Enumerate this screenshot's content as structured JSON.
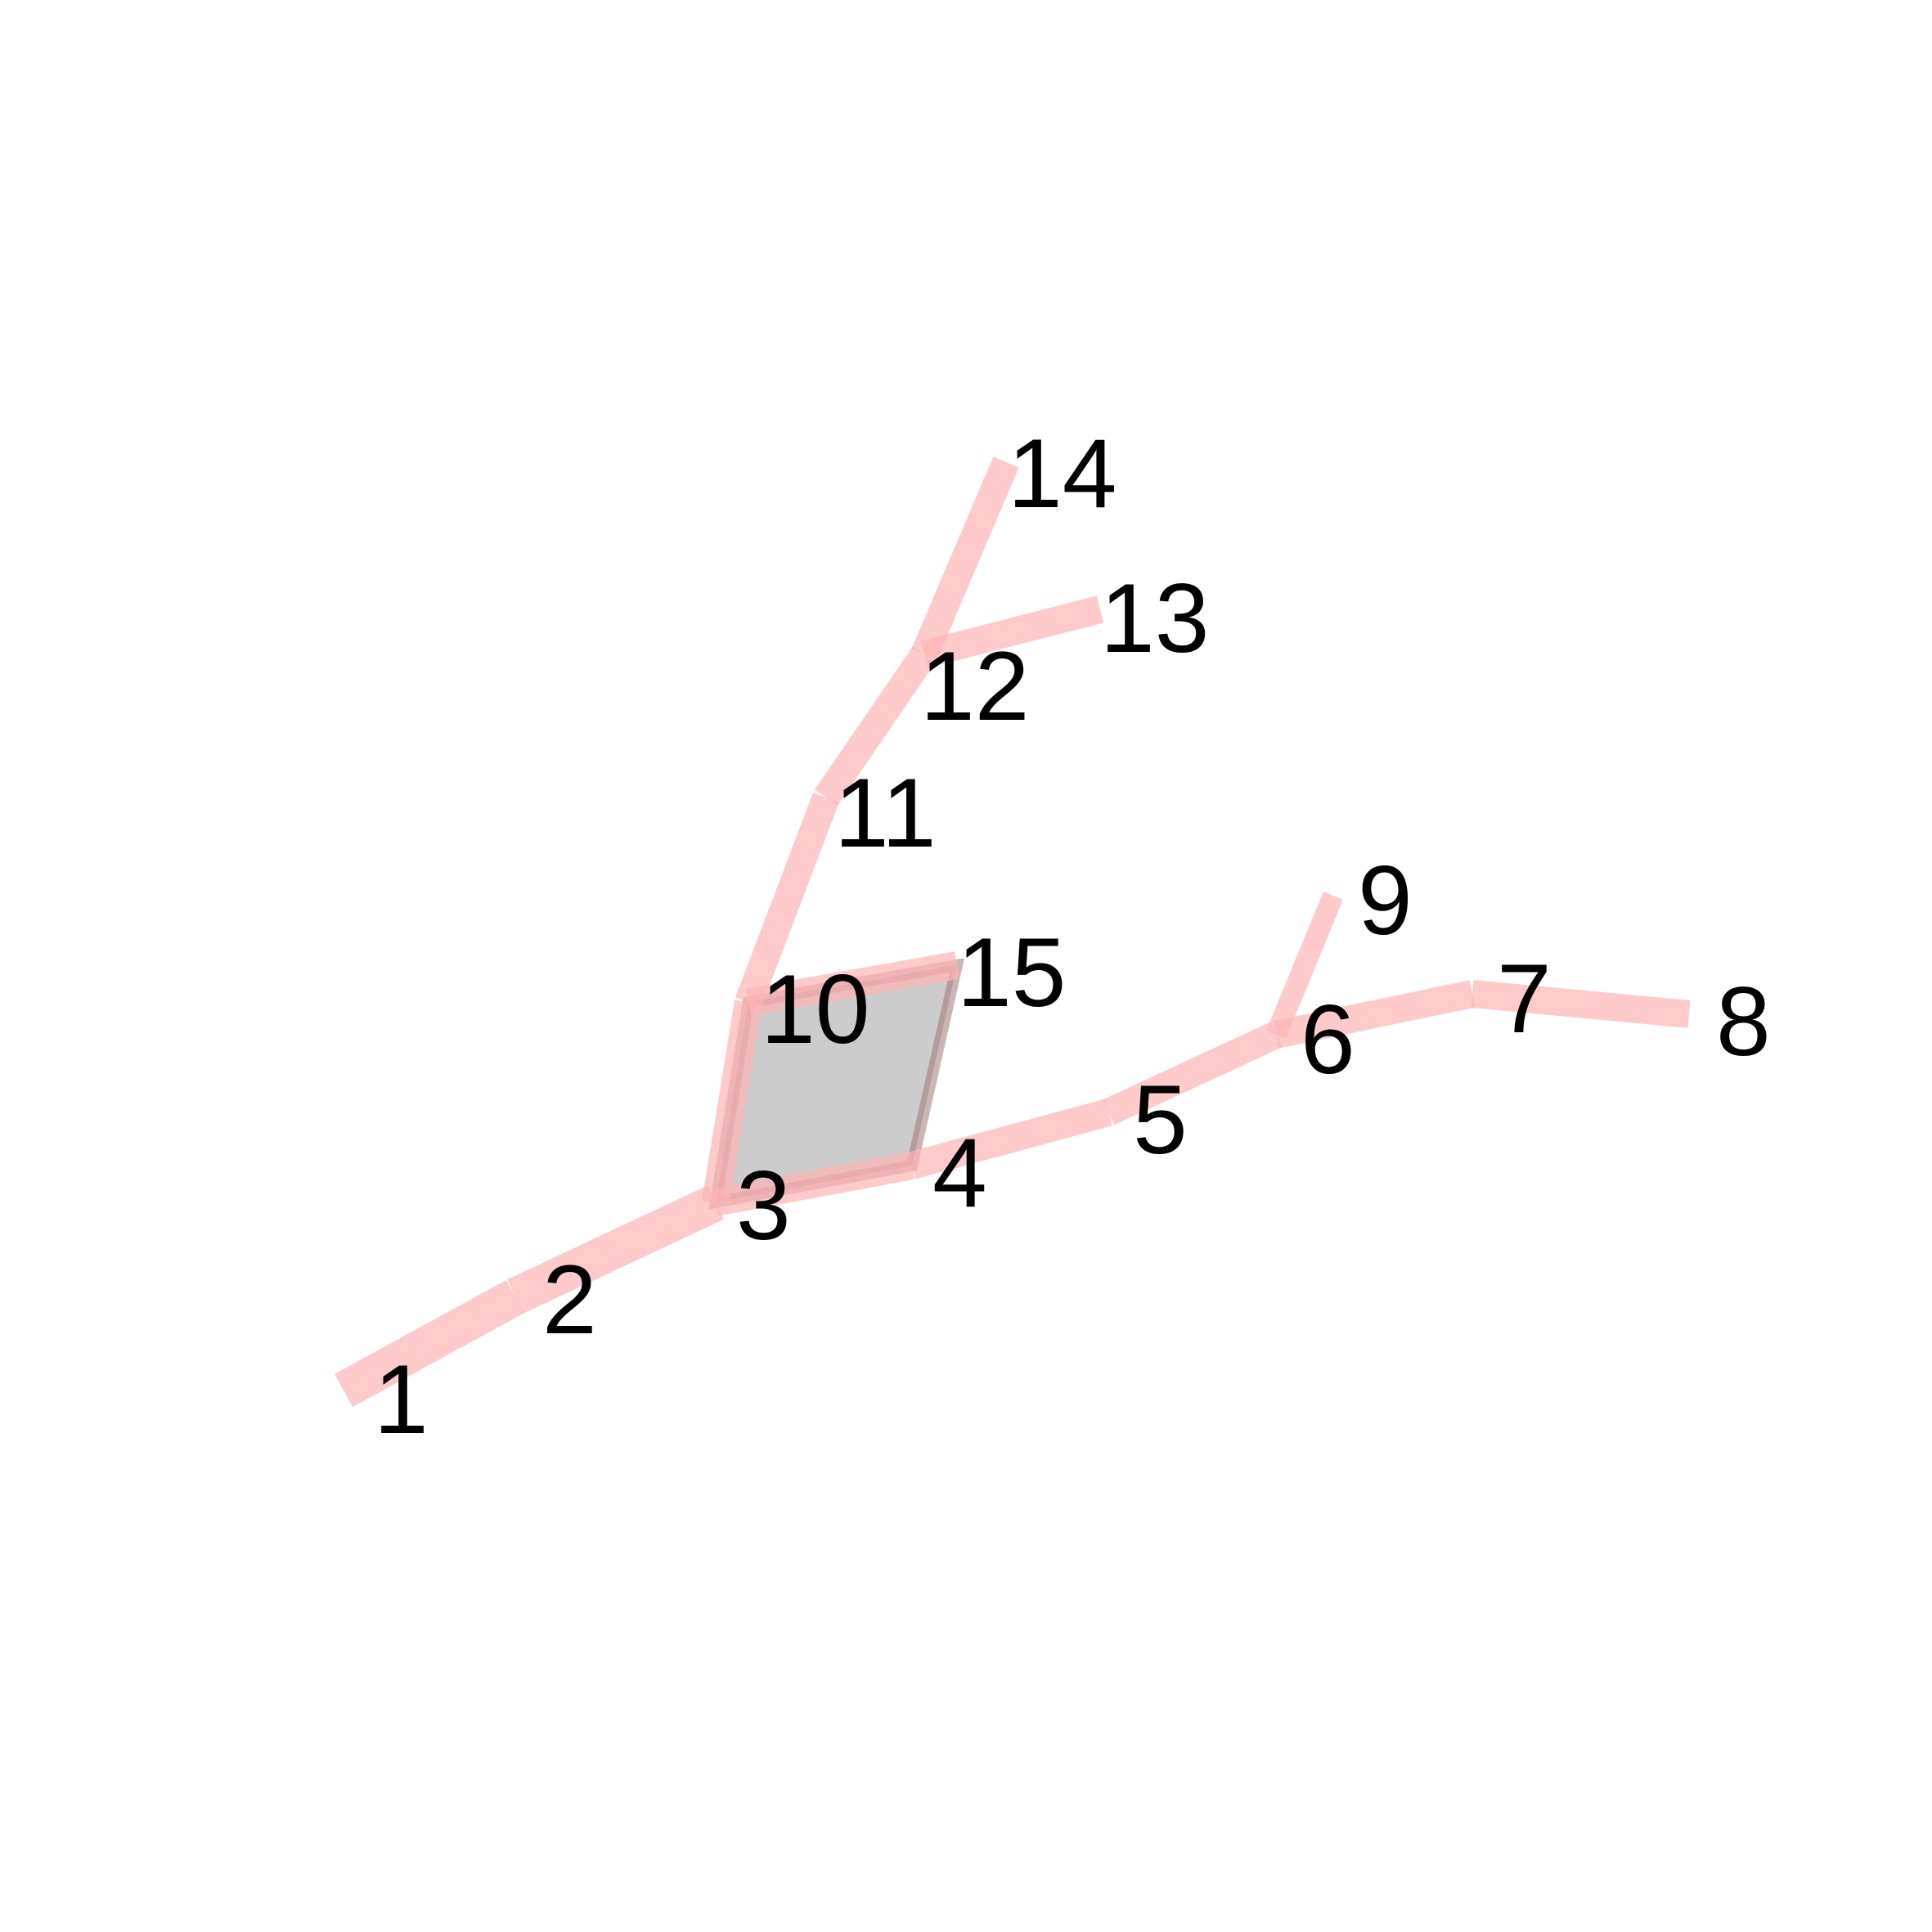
{
  "colors": {
    "background": "#ffffff",
    "bond": "#ffb3b3",
    "ring_fill": "#b0b0b0",
    "ring_edge": "#9a6b6b",
    "label": "#000000"
  },
  "nodes": [
    {
      "id": "1",
      "label": "1"
    },
    {
      "id": "2",
      "label": "2"
    },
    {
      "id": "3",
      "label": "3"
    },
    {
      "id": "4",
      "label": "4"
    },
    {
      "id": "5",
      "label": "5"
    },
    {
      "id": "6",
      "label": "6"
    },
    {
      "id": "7",
      "label": "7"
    },
    {
      "id": "8",
      "label": "8"
    },
    {
      "id": "9",
      "label": "9"
    },
    {
      "id": "10",
      "label": "10"
    },
    {
      "id": "11",
      "label": "11"
    },
    {
      "id": "12",
      "label": "12"
    },
    {
      "id": "13",
      "label": "13"
    },
    {
      "id": "14",
      "label": "14"
    },
    {
      "id": "15",
      "label": "15"
    }
  ],
  "edges": [
    {
      "from": "1",
      "to": "2",
      "weight": 3
    },
    {
      "from": "2",
      "to": "3",
      "weight": 3
    },
    {
      "from": "3",
      "to": "4",
      "weight": 2
    },
    {
      "from": "4",
      "to": "5",
      "weight": 2
    },
    {
      "from": "5",
      "to": "6",
      "weight": 2
    },
    {
      "from": "6",
      "to": "7",
      "weight": 2
    },
    {
      "from": "7",
      "to": "8",
      "weight": 2
    },
    {
      "from": "6",
      "to": "9",
      "weight": 1
    },
    {
      "from": "3",
      "to": "10",
      "weight": 2
    },
    {
      "from": "10",
      "to": "11",
      "weight": 2
    },
    {
      "from": "11",
      "to": "12",
      "weight": 2
    },
    {
      "from": "12",
      "to": "13",
      "weight": 2
    },
    {
      "from": "12",
      "to": "14",
      "weight": 2
    },
    {
      "from": "10",
      "to": "15",
      "weight": 2
    }
  ],
  "rings": [
    {
      "name": "ring-3-10-15-4",
      "members": [
        "3",
        "10",
        "15",
        "4"
      ]
    }
  ]
}
